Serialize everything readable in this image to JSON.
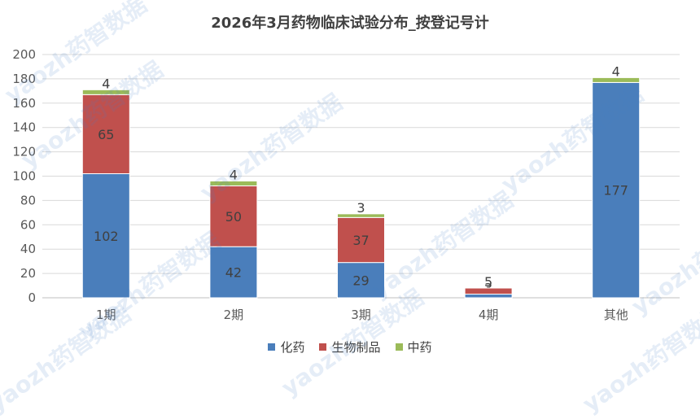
{
  "title": "2026年3月药物临床试验分布_按登记号计",
  "watermark_text": "yaozh药智数据",
  "colors": {
    "化药": "#4a7ebb",
    "生物制品": "#c0504d",
    "中药": "#9bbb59",
    "grid": "#d9d9d9",
    "axis_text": "#595959"
  },
  "chart_data": {
    "type": "bar",
    "stacked": true,
    "categories": [
      "1期",
      "2期",
      "3期",
      "4期",
      "其他"
    ],
    "series": [
      {
        "name": "化药",
        "values": [
          102,
          42,
          29,
          3,
          177
        ]
      },
      {
        "name": "生物制品",
        "values": [
          65,
          50,
          37,
          5,
          0
        ]
      },
      {
        "name": "中药",
        "values": [
          4,
          4,
          3,
          0,
          4
        ]
      }
    ],
    "data_labels": [
      [
        "102",
        "42",
        "29",
        "3",
        "177"
      ],
      [
        "65",
        "50",
        "37",
        "5",
        ""
      ],
      [
        "4",
        "4",
        "3",
        "",
        "4"
      ]
    ],
    "ylim": [
      0,
      200
    ],
    "yticks": [
      0,
      20,
      40,
      60,
      80,
      100,
      120,
      140,
      160,
      180,
      200
    ],
    "grid": true,
    "legend_position": "bottom"
  }
}
